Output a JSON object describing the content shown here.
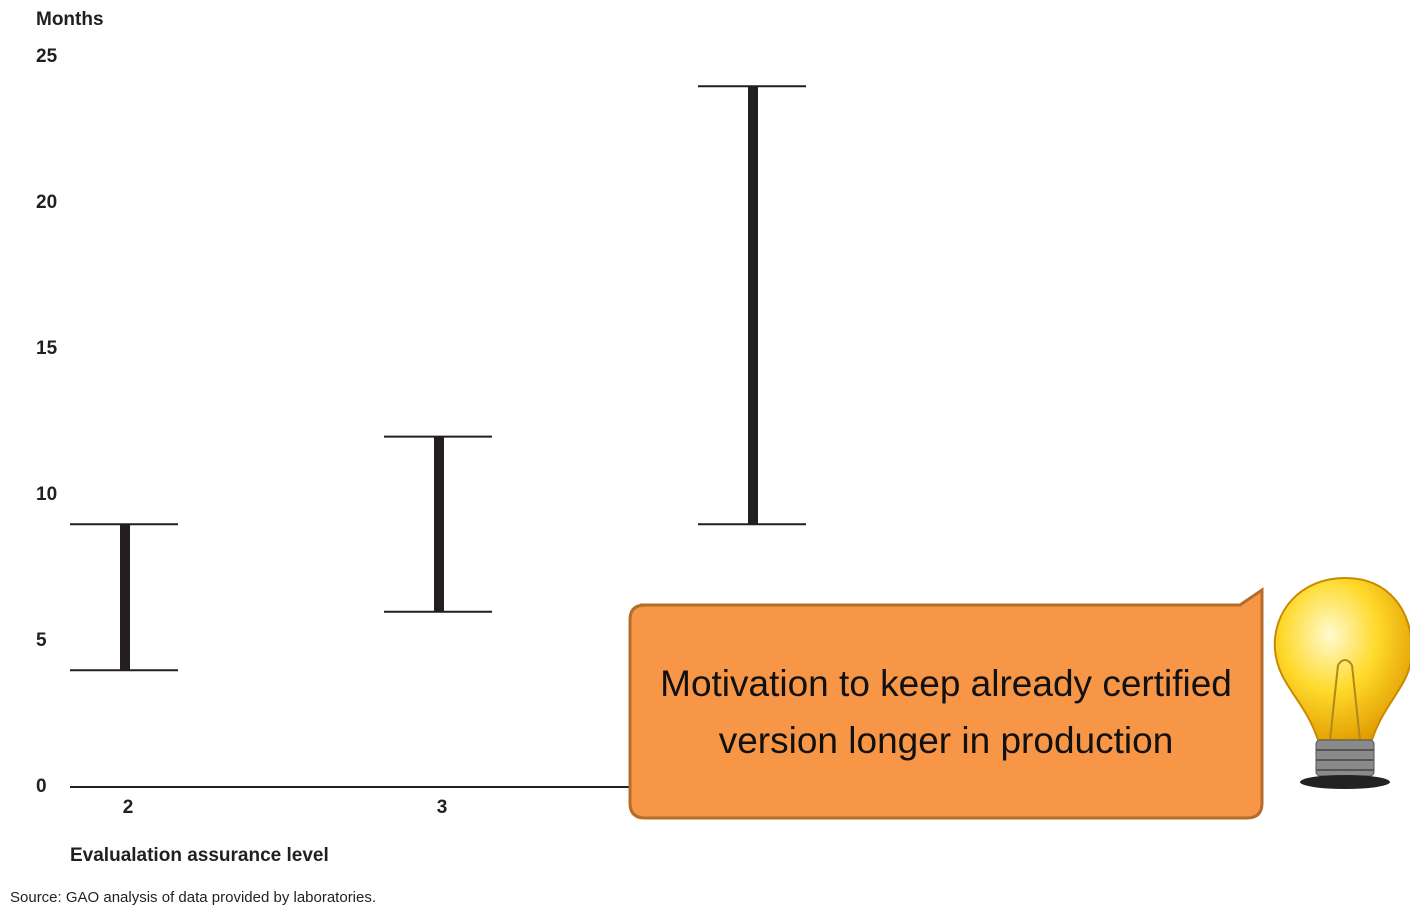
{
  "chart_data": {
    "type": "range",
    "y_label": "Months",
    "x_label": "Evalualation assurance level",
    "source": "Source: GAO analysis of data provided by laboratories.",
    "categories": [
      "2",
      "3",
      null
    ],
    "low": [
      4,
      6,
      9
    ],
    "high": [
      9,
      12,
      24
    ],
    "color": "#231f20",
    "ylim": [
      0,
      25
    ],
    "yticks": [
      0,
      5,
      10,
      15,
      20,
      25
    ],
    "annotation": "Motivation to keep already certified version longer in production"
  }
}
